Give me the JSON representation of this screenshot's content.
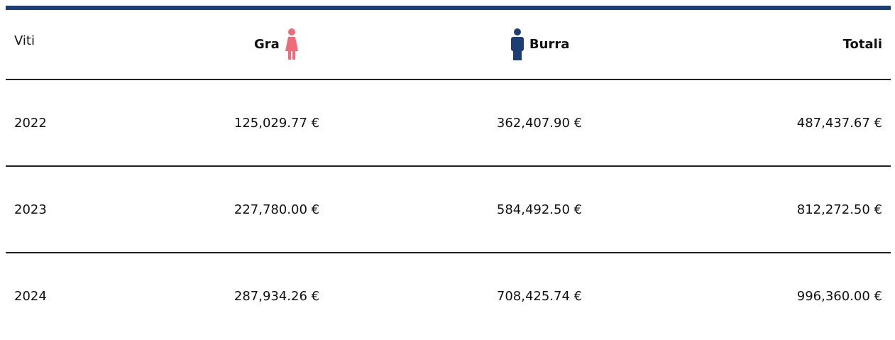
{
  "table": {
    "header": [
      "Viti",
      "Gra",
      "Burra",
      "Totali"
    ],
    "rows": [
      [
        "2022",
        "125,029.77 €",
        "362,407.90 €",
        "487,437.67 €"
      ],
      [
        "2023",
        "227,780.00 €",
        "584,492.50 €",
        "812,272.50 €"
      ],
      [
        "2024",
        "287,934.26 €",
        "708,425.74 €",
        "996,360.00 €"
      ]
    ]
  }
}
